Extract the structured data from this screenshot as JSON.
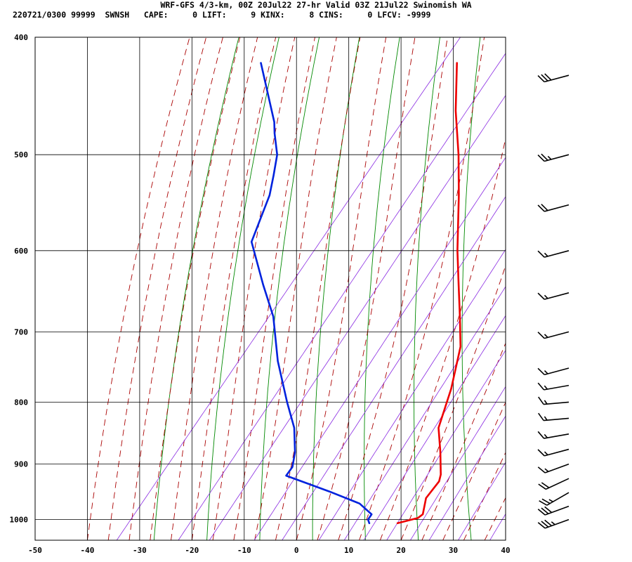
{
  "header": {
    "title": "WRF-GFS 4/3-km, 00Z 20Jul22 27-hr Valid 03Z 21Jul22 Swinomish WA",
    "stats": "220721/0300 99999  SWNSH   CAPE:     0 LIFT:     9 KINX:     8 CINS:     0 LFCV: -9999"
  },
  "chart_data": {
    "type": "line",
    "subtype": "skew-t log-p sounding",
    "x_axis": {
      "ticks": [
        -50,
        -40,
        -30,
        -20,
        -10,
        0,
        10,
        20,
        30,
        40
      ],
      "range": [
        -50,
        40
      ]
    },
    "y_axis": {
      "ticks": [
        400,
        500,
        600,
        700,
        800,
        900,
        1000
      ],
      "range": [
        400,
        1040
      ],
      "scale": "log",
      "inverted": true
    },
    "grid": true,
    "series": [
      {
        "role": "temperature",
        "color": "#ee0000",
        "p": [
          1007,
          997,
          990,
          960,
          930,
          918,
          880,
          840,
          780,
          720,
          680,
          640,
          600,
          540,
          500,
          460,
          420
        ],
        "t": [
          16.8,
          19.9,
          20.3,
          18.5,
          18.5,
          17.8,
          14.4,
          10.4,
          7.0,
          2.5,
          -2.1,
          -7.1,
          -12.4,
          -20.4,
          -26.5,
          -33.6,
          -40.5
        ]
      },
      {
        "role": "dewpoint",
        "color": "#0022dd",
        "p": [
          1007,
          1000,
          990,
          970,
          948,
          920,
          905,
          880,
          840,
          800,
          740,
          680,
          640,
          590,
          540,
          520,
          500,
          480,
          470,
          420
        ],
        "t": [
          11.4,
          10.6,
          10.5,
          6.6,
          -1.0,
          -11.6,
          -11.7,
          -13.4,
          -17.2,
          -22.4,
          -30.3,
          -37.8,
          -44.5,
          -53.1,
          -56.6,
          -58.8,
          -61.2,
          -64.9,
          -66.6,
          -78.0
        ]
      }
    ],
    "background_lines": {
      "isotherm_color": "#000000",
      "dry_adiabat_color": "#008800",
      "moist_adiabat_color": "#aa0000",
      "mixing_ratio_color": "#8a2be2"
    },
    "wind_barbs": {
      "color": "#000000",
      "levels": [
        {
          "p": 1000,
          "dir": 250,
          "spd": 35
        },
        {
          "p": 975,
          "dir": 250,
          "spd": 30
        },
        {
          "p": 950,
          "dir": 240,
          "spd": 25
        },
        {
          "p": 925,
          "dir": 245,
          "spd": 20
        },
        {
          "p": 900,
          "dir": 250,
          "spd": 15
        },
        {
          "p": 875,
          "dir": 255,
          "spd": 15
        },
        {
          "p": 850,
          "dir": 260,
          "spd": 15
        },
        {
          "p": 825,
          "dir": 265,
          "spd": 15
        },
        {
          "p": 800,
          "dir": 265,
          "spd": 15
        },
        {
          "p": 775,
          "dir": 260,
          "spd": 15
        },
        {
          "p": 750,
          "dir": 255,
          "spd": 15
        },
        {
          "p": 700,
          "dir": 255,
          "spd": 15
        },
        {
          "p": 650,
          "dir": 255,
          "spd": 15
        },
        {
          "p": 600,
          "dir": 255,
          "spd": 15
        },
        {
          "p": 550,
          "dir": 255,
          "spd": 20
        },
        {
          "p": 500,
          "dir": 255,
          "spd": 25
        },
        {
          "p": 430,
          "dir": 255,
          "spd": 30
        }
      ]
    }
  }
}
